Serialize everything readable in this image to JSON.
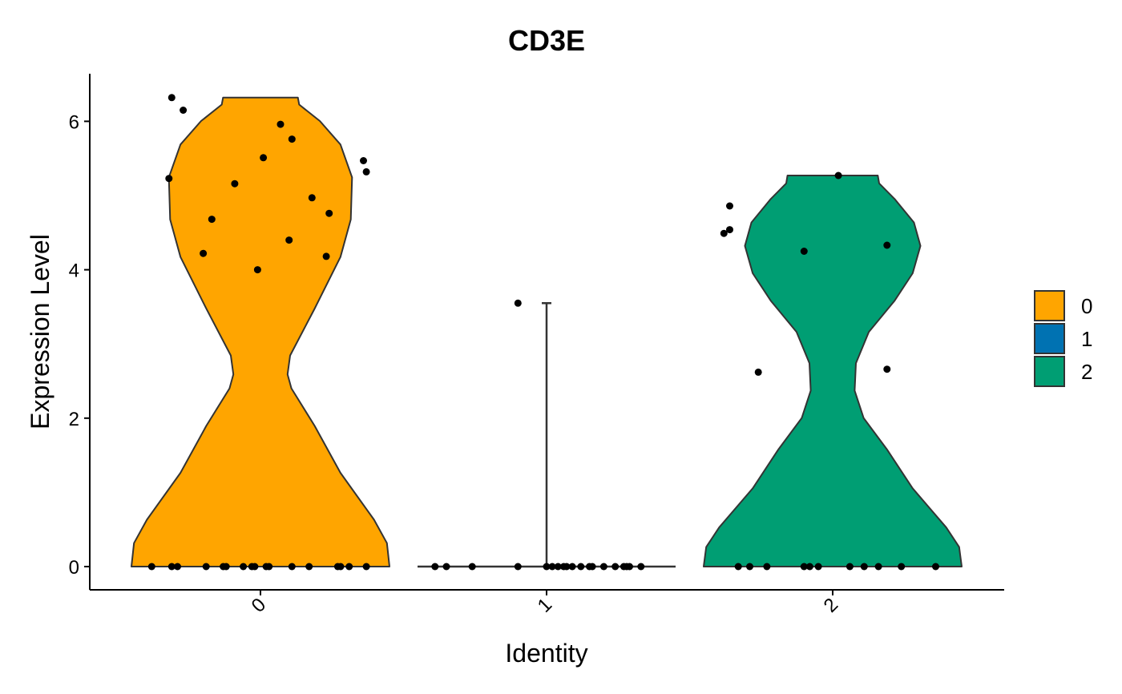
{
  "chart_data": {
    "type": "violin",
    "title": "CD3E",
    "xlabel": "Identity",
    "ylabel": "Expression Level",
    "ylim": [
      -0.3,
      6.6
    ],
    "yticks": [
      "0",
      "2",
      "4",
      "6"
    ],
    "categories": [
      "0",
      "1",
      "2"
    ],
    "legend": {
      "placement": "right",
      "entries": [
        "0",
        "1",
        "2"
      ]
    },
    "series": [
      {
        "name": "0",
        "color": "#FFA500",
        "max": 6.32,
        "points": [
          {
            "x": -0.31,
            "y": 6.32
          },
          {
            "x": -0.27,
            "y": 6.15
          },
          {
            "x": 0.07,
            "y": 5.96
          },
          {
            "x": 0.11,
            "y": 5.76
          },
          {
            "x": 0.01,
            "y": 5.51
          },
          {
            "x": 0.36,
            "y": 5.47
          },
          {
            "x": 0.37,
            "y": 5.32
          },
          {
            "x": -0.32,
            "y": 5.23
          },
          {
            "x": -0.09,
            "y": 5.16
          },
          {
            "x": 0.18,
            "y": 4.97
          },
          {
            "x": 0.24,
            "y": 4.76
          },
          {
            "x": -0.17,
            "y": 4.68
          },
          {
            "x": 0.1,
            "y": 4.4
          },
          {
            "x": -0.2,
            "y": 4.22
          },
          {
            "x": 0.23,
            "y": 4.18
          },
          {
            "x": -0.01,
            "y": 4.0
          },
          {
            "x": -0.38,
            "y": 0
          },
          {
            "x": -0.31,
            "y": 0
          },
          {
            "x": -0.29,
            "y": 0
          },
          {
            "x": -0.19,
            "y": 0
          },
          {
            "x": -0.13,
            "y": 0
          },
          {
            "x": -0.12,
            "y": 0
          },
          {
            "x": -0.06,
            "y": 0
          },
          {
            "x": -0.03,
            "y": 0
          },
          {
            "x": -0.02,
            "y": 0
          },
          {
            "x": 0.02,
            "y": 0
          },
          {
            "x": 0.03,
            "y": 0
          },
          {
            "x": 0.11,
            "y": 0
          },
          {
            "x": 0.17,
            "y": 0
          },
          {
            "x": 0.27,
            "y": 0
          },
          {
            "x": 0.28,
            "y": 0
          },
          {
            "x": 0.31,
            "y": 0
          },
          {
            "x": 0.37,
            "y": 0
          }
        ]
      },
      {
        "name": "1",
        "color": "#0072B2",
        "max": 3.55,
        "points": [
          {
            "x": -0.1,
            "y": 3.55
          },
          {
            "x": -0.39,
            "y": 0
          },
          {
            "x": -0.35,
            "y": 0
          },
          {
            "x": -0.26,
            "y": 0
          },
          {
            "x": -0.1,
            "y": 0
          },
          {
            "x": 0.0,
            "y": 0
          },
          {
            "x": 0.02,
            "y": 0
          },
          {
            "x": 0.04,
            "y": 0
          },
          {
            "x": 0.06,
            "y": 0
          },
          {
            "x": 0.07,
            "y": 0
          },
          {
            "x": 0.09,
            "y": 0
          },
          {
            "x": 0.12,
            "y": 0
          },
          {
            "x": 0.15,
            "y": 0
          },
          {
            "x": 0.16,
            "y": 0
          },
          {
            "x": 0.2,
            "y": 0
          },
          {
            "x": 0.24,
            "y": 0
          },
          {
            "x": 0.27,
            "y": 0
          },
          {
            "x": 0.28,
            "y": 0
          },
          {
            "x": 0.29,
            "y": 0
          },
          {
            "x": 0.33,
            "y": 0
          }
        ]
      },
      {
        "name": "2",
        "color": "#009E73",
        "max": 5.27,
        "points": [
          {
            "x": 0.02,
            "y": 5.27
          },
          {
            "x": -0.36,
            "y": 4.86
          },
          {
            "x": -0.36,
            "y": 4.54
          },
          {
            "x": -0.38,
            "y": 4.49
          },
          {
            "x": 0.19,
            "y": 4.33
          },
          {
            "x": -0.1,
            "y": 4.25
          },
          {
            "x": 0.19,
            "y": 2.66
          },
          {
            "x": -0.26,
            "y": 2.62
          },
          {
            "x": -0.33,
            "y": 0
          },
          {
            "x": -0.29,
            "y": 0
          },
          {
            "x": -0.23,
            "y": 0
          },
          {
            "x": -0.1,
            "y": 0
          },
          {
            "x": -0.08,
            "y": 0
          },
          {
            "x": -0.05,
            "y": 0
          },
          {
            "x": 0.06,
            "y": 0
          },
          {
            "x": 0.11,
            "y": 0
          },
          {
            "x": 0.16,
            "y": 0
          },
          {
            "x": 0.24,
            "y": 0
          },
          {
            "x": 0.36,
            "y": 0
          }
        ]
      }
    ]
  }
}
